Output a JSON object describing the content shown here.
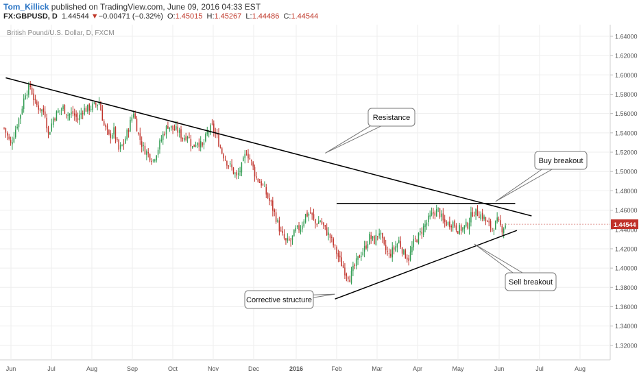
{
  "header": {
    "author": "Tom_Killick",
    "published": " published on TradingView.com, June 09, 2016 04:33 EST",
    "symbol": "FX:GBPUSD, D",
    "last": "1.44544",
    "change_arrow": "▼",
    "change": "−0.00471 (−0.32%)",
    "o_label": "O:",
    "o_value": "1.45015",
    "h_label": "H:",
    "h_value": "1.45267",
    "l_label": "L:",
    "l_value": "1.44486",
    "c_label": "C:",
    "c_value": "1.44544"
  },
  "colors": {
    "up": "#2e9a4f",
    "down": "#c0322a",
    "tag": "#c0322a",
    "grid": "#eeeeee",
    "line": "#000000"
  },
  "chart_data": {
    "type": "candlestick",
    "title": "British Pound/U.S. Dollar, D, FXCM",
    "ylim": [
      1.305,
      1.652
    ],
    "y_ticks": [
      "1.64000",
      "1.62000",
      "1.60000",
      "1.58000",
      "1.56000",
      "1.54000",
      "1.52000",
      "1.50000",
      "1.48000",
      "1.46000",
      "1.44000",
      "1.42000",
      "1.40000",
      "1.38000",
      "1.36000",
      "1.34000",
      "1.32000"
    ],
    "x_ticks": [
      "Jun",
      "Jul",
      "Aug",
      "Sep",
      "Oct",
      "Nov",
      "Dec",
      "2016",
      "Feb",
      "Mar",
      "Apr",
      "May",
      "Jun",
      "Jul",
      "Aug"
    ],
    "last_price": "1.44544",
    "close_path": [
      [
        0,
        1.545
      ],
      [
        4,
        1.528
      ],
      [
        7,
        1.544
      ],
      [
        10,
        1.56
      ],
      [
        13,
        1.582
      ],
      [
        16,
        1.588
      ],
      [
        19,
        1.57
      ],
      [
        22,
        1.565
      ],
      [
        25,
        1.56
      ],
      [
        27,
        1.538
      ],
      [
        30,
        1.555
      ],
      [
        33,
        1.562
      ],
      [
        36,
        1.566
      ],
      [
        39,
        1.559
      ],
      [
        42,
        1.56
      ],
      [
        45,
        1.554
      ],
      [
        48,
        1.564
      ],
      [
        51,
        1.565
      ],
      [
        55,
        1.568
      ],
      [
        58,
        1.572
      ],
      [
        61,
        1.548
      ],
      [
        64,
        1.536
      ],
      [
        67,
        1.542
      ],
      [
        70,
        1.522
      ],
      [
        73,
        1.529
      ],
      [
        76,
        1.545
      ],
      [
        79,
        1.562
      ],
      [
        82,
        1.538
      ],
      [
        85,
        1.524
      ],
      [
        88,
        1.518
      ],
      [
        91,
        1.512
      ],
      [
        94,
        1.524
      ],
      [
        97,
        1.538
      ],
      [
        100,
        1.548
      ],
      [
        103,
        1.544
      ],
      [
        106,
        1.542
      ],
      [
        109,
        1.535
      ],
      [
        112,
        1.538
      ],
      [
        115,
        1.525
      ],
      [
        118,
        1.532
      ],
      [
        121,
        1.525
      ],
      [
        124,
        1.54
      ],
      [
        127,
        1.546
      ],
      [
        130,
        1.535
      ],
      [
        133,
        1.52
      ],
      [
        136,
        1.51
      ],
      [
        139,
        1.503
      ],
      [
        142,
        1.494
      ],
      [
        145,
        1.505
      ],
      [
        148,
        1.521
      ],
      [
        151,
        1.509
      ],
      [
        154,
        1.493
      ],
      [
        157,
        1.488
      ],
      [
        160,
        1.477
      ],
      [
        163,
        1.466
      ],
      [
        166,
        1.452
      ],
      [
        169,
        1.436
      ],
      [
        172,
        1.427
      ],
      [
        175,
        1.428
      ],
      [
        178,
        1.439
      ],
      [
        181,
        1.442
      ],
      [
        184,
        1.455
      ],
      [
        187,
        1.457
      ],
      [
        190,
        1.446
      ],
      [
        193,
        1.449
      ],
      [
        196,
        1.44
      ],
      [
        199,
        1.432
      ],
      [
        202,
        1.42
      ],
      [
        205,
        1.408
      ],
      [
        208,
        1.397
      ],
      [
        211,
        1.39
      ],
      [
        214,
        1.402
      ],
      [
        217,
        1.413
      ],
      [
        220,
        1.42
      ],
      [
        223,
        1.432
      ],
      [
        226,
        1.428
      ],
      [
        229,
        1.438
      ],
      [
        232,
        1.421
      ],
      [
        235,
        1.413
      ],
      [
        238,
        1.42
      ],
      [
        241,
        1.428
      ],
      [
        244,
        1.415
      ],
      [
        247,
        1.41
      ],
      [
        250,
        1.426
      ],
      [
        253,
        1.433
      ],
      [
        256,
        1.442
      ],
      [
        259,
        1.45
      ],
      [
        262,
        1.457
      ],
      [
        265,
        1.46
      ],
      [
        268,
        1.448
      ],
      [
        271,
        1.446
      ],
      [
        274,
        1.447
      ],
      [
        277,
        1.44
      ],
      [
        280,
        1.441
      ],
      [
        283,
        1.445
      ],
      [
        286,
        1.458
      ],
      [
        289,
        1.457
      ],
      [
        292,
        1.454
      ],
      [
        295,
        1.446
      ],
      [
        298,
        1.441
      ],
      [
        301,
        1.448
      ],
      [
        304,
        1.441
      ],
      [
        306,
        1.445
      ]
    ],
    "x_range": [
      0,
      370
    ],
    "trendlines": [
      {
        "name": "resistance",
        "x0": 1,
        "y0": 1.597,
        "x1": 322,
        "y1": 1.454
      },
      {
        "name": "horizontal",
        "x0": 203,
        "y0": 1.467,
        "x1": 312,
        "y1": 1.467
      },
      {
        "name": "support",
        "x0": 202,
        "y0": 1.368,
        "x1": 313,
        "y1": 1.439
      }
    ],
    "annotations": [
      {
        "name": "callout-resistance",
        "text": "Resistance",
        "anchor_x": 196,
        "anchor_y": 1.519
      },
      {
        "name": "callout-buy-breakout",
        "text": "Buy breakout",
        "anchor_x": 300,
        "anchor_y": 1.469
      },
      {
        "name": "callout-sell-breakout",
        "text": "Sell breakout",
        "anchor_x": 287,
        "anchor_y": 1.425
      },
      {
        "name": "callout-corrective-structure",
        "text": "Corrective structure",
        "anchor_x": 202,
        "anchor_y": 1.373
      }
    ]
  }
}
